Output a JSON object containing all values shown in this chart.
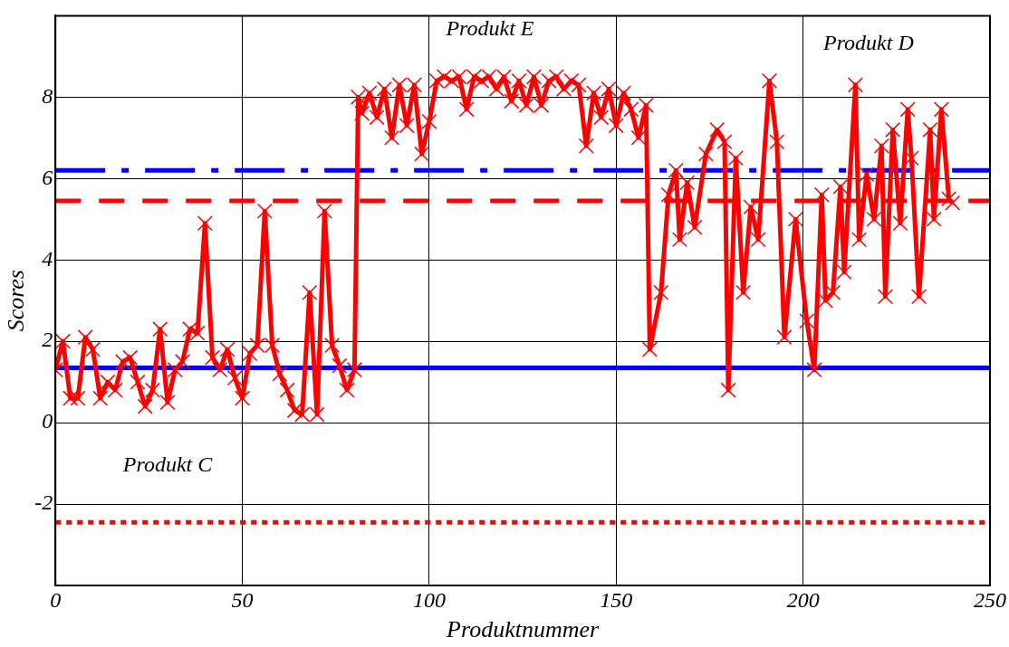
{
  "chart_data": {
    "type": "line",
    "xlabel": "Produktnummer",
    "ylabel": "Scores",
    "xlim": [
      0,
      250
    ],
    "xticks": [
      0,
      50,
      100,
      150,
      200,
      250
    ],
    "ylim": [
      -4,
      10
    ],
    "yticks": [
      -2,
      0,
      2,
      4,
      6,
      8
    ],
    "grid": true,
    "legend": false,
    "marker": "cross",
    "line_style": "solid",
    "series": [
      {
        "color": "#ff0000",
        "x": [
          0,
          2,
          4,
          6,
          8,
          10,
          12,
          14,
          16,
          18,
          20,
          22,
          24,
          26,
          28,
          30,
          32,
          34,
          36,
          38,
          40,
          42,
          44,
          46,
          48,
          50,
          52,
          54,
          56,
          58,
          60,
          62,
          64,
          66,
          68,
          70,
          72,
          74,
          76,
          78,
          80,
          81,
          82,
          84,
          86,
          88,
          90,
          92,
          94,
          96,
          98,
          100,
          102,
          104,
          106,
          108,
          110,
          112,
          114,
          116,
          118,
          120,
          122,
          124,
          126,
          128,
          130,
          132,
          134,
          136,
          138,
          140,
          142,
          144,
          146,
          148,
          150,
          152,
          154,
          156,
          158,
          159,
          162,
          164,
          166,
          167,
          169,
          171,
          174,
          177,
          179,
          180,
          182,
          184,
          186,
          188,
          191,
          193,
          195,
          198,
          201,
          203,
          205,
          206,
          208,
          210,
          211,
          214,
          215,
          217,
          219,
          221,
          222,
          224,
          226,
          228,
          229,
          231,
          234,
          235,
          237,
          239,
          240
        ],
        "values": [
          1.3,
          2.0,
          0.6,
          0.6,
          2.1,
          1.8,
          0.6,
          1.0,
          0.8,
          1.5,
          1.6,
          1.0,
          0.4,
          0.8,
          2.3,
          0.5,
          1.3,
          1.5,
          2.3,
          2.2,
          4.9,
          1.6,
          1.3,
          1.8,
          1.1,
          0.6,
          1.7,
          1.9,
          5.2,
          1.9,
          1.2,
          0.8,
          0.3,
          0.2,
          3.2,
          0.2,
          5.2,
          1.9,
          1.4,
          0.8,
          1.3,
          8.0,
          7.6,
          8.1,
          7.5,
          8.2,
          7.0,
          8.3,
          7.3,
          8.3,
          6.6,
          7.4,
          8.4,
          8.5,
          8.4,
          8.5,
          7.7,
          8.5,
          8.4,
          8.5,
          8.2,
          8.5,
          7.9,
          8.4,
          7.8,
          8.5,
          7.8,
          8.4,
          8.5,
          8.2,
          8.4,
          8.3,
          6.8,
          8.1,
          7.5,
          8.2,
          7.3,
          8.1,
          7.7,
          7.0,
          7.8,
          1.8,
          3.2,
          5.6,
          6.2,
          4.5,
          5.9,
          4.8,
          6.6,
          7.2,
          6.9,
          0.8,
          6.5,
          3.2,
          5.3,
          4.5,
          8.4,
          6.9,
          2.1,
          5.0,
          2.5,
          1.3,
          5.6,
          3.0,
          3.2,
          5.8,
          3.7,
          8.3,
          4.5,
          6.1,
          5.0,
          6.8,
          3.1,
          7.2,
          4.9,
          7.7,
          6.5,
          3.1,
          7.2,
          5.0,
          7.7,
          5.5,
          5.4
        ]
      }
    ],
    "ref_lines": [
      {
        "axis": "y",
        "value": 1.35,
        "color": "#0000ff",
        "line_style": "solid"
      },
      {
        "axis": "y",
        "value": 6.2,
        "color": "#0000ff",
        "line_style": "dashdot"
      },
      {
        "axis": "y",
        "value": 5.45,
        "color": "#ff0000",
        "line_style": "dashed"
      },
      {
        "axis": "y",
        "value": -2.45,
        "color": "#ff0000",
        "line_style": "dotted"
      }
    ],
    "annotations": [
      "Produkt C",
      "Produkt E",
      "Produkt D"
    ]
  }
}
